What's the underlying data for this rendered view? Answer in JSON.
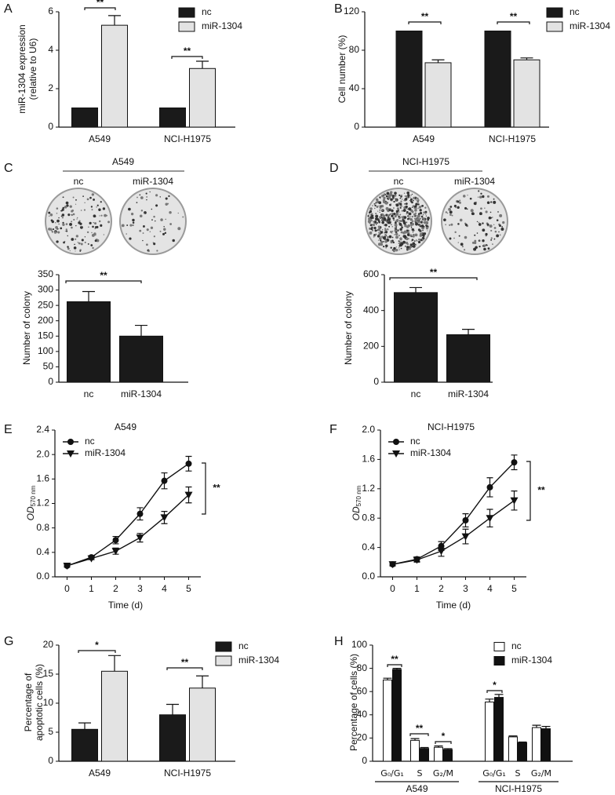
{
  "chart_data": [
    {
      "panel": "A",
      "type": "bar",
      "categories": [
        "A549",
        "NCI-H1975"
      ],
      "ylabel": [
        "miR-1304 expression",
        "(relative to U6)"
      ],
      "ylim": [
        0,
        6
      ],
      "yticks": [
        0,
        2,
        4,
        6
      ],
      "series": [
        {
          "name": "nc",
          "color": "#1a1a1a",
          "values": [
            1,
            1
          ]
        },
        {
          "name": "miR-1304",
          "color": "#e3e3e3",
          "values": [
            5.3,
            3.05
          ],
          "errors": [
            0.5,
            0.38
          ]
        }
      ],
      "annotations": [
        "**",
        "**"
      ]
    },
    {
      "panel": "B",
      "type": "bar",
      "categories": [
        "A549",
        "NCI-H1975"
      ],
      "ylabel": [
        "Cell number (%)"
      ],
      "ylim": [
        0,
        120
      ],
      "yticks": [
        0,
        40,
        80,
        120
      ],
      "series": [
        {
          "name": "nc",
          "color": "#1a1a1a",
          "values": [
            100,
            100
          ]
        },
        {
          "name": "miR-1304",
          "color": "#e3e3e3",
          "values": [
            67,
            70
          ],
          "errors": [
            3,
            2
          ]
        }
      ],
      "annotations": [
        "**",
        "**"
      ]
    },
    {
      "panel": "C",
      "type": "bar",
      "title": "A549",
      "dish_labels": [
        "nc",
        "miR-1304"
      ],
      "categories": [
        "nc",
        "miR-1304"
      ],
      "values": [
        262,
        150
      ],
      "errors": [
        33,
        35
      ],
      "color": "#1a1a1a",
      "ylabel": [
        "Number of colony"
      ],
      "ylim": [
        0,
        350
      ],
      "yticks": [
        0,
        50,
        100,
        150,
        200,
        250,
        300,
        350
      ],
      "annotations": [
        "**"
      ]
    },
    {
      "panel": "D",
      "type": "bar",
      "title": "NCI-H1975",
      "dish_labels": [
        "nc",
        "miR-1304"
      ],
      "categories": [
        "nc",
        "miR-1304"
      ],
      "values": [
        500,
        265
      ],
      "errors": [
        28,
        30
      ],
      "color": "#1a1a1a",
      "ylabel": [
        "Number of colony"
      ],
      "ylim": [
        0,
        600
      ],
      "yticks": [
        0,
        200,
        400,
        600
      ],
      "annotations": [
        "**"
      ]
    },
    {
      "panel": "E",
      "type": "line",
      "title": "A549",
      "xlabel": "Time (d)",
      "ylabel": "OD",
      "ylabel_sub": "570 nm",
      "x": [
        0,
        1,
        2,
        3,
        4,
        5
      ],
      "xlim": [
        -0.5,
        5.5
      ],
      "xticks": [
        0,
        1,
        2,
        3,
        4,
        5
      ],
      "ylim": [
        0,
        2.4
      ],
      "yticks": [
        {
          "value": 0,
          "label": "0.0"
        },
        {
          "value": 0.4,
          "label": "0.4"
        },
        {
          "value": 0.8,
          "label": "0.8"
        },
        {
          "value": 1.2,
          "label": "1.2"
        },
        {
          "value": 1.6,
          "label": "1.6"
        },
        {
          "value": 2.0,
          "label": "2.0"
        },
        {
          "value": 2.4,
          "label": "2.4"
        }
      ],
      "series": [
        {
          "name": "nc",
          "color": "#111111",
          "marker": "circle",
          "values": [
            0.18,
            0.32,
            0.6,
            1.03,
            1.57,
            1.85
          ],
          "errors": [
            0.02,
            0.02,
            0.06,
            0.1,
            0.13,
            0.12
          ]
        },
        {
          "name": "miR-1304",
          "color": "#111111",
          "marker": "triangle-down",
          "values": [
            0.18,
            0.3,
            0.42,
            0.64,
            0.97,
            1.34
          ],
          "errors": [
            0.02,
            0.02,
            0.05,
            0.07,
            0.1,
            0.13
          ]
        }
      ],
      "annotations": [
        "**"
      ]
    },
    {
      "panel": "F",
      "type": "line",
      "title": "NCI-H1975",
      "xlabel": "Time (d)",
      "ylabel": "OD",
      "ylabel_sub": "570 nm",
      "x": [
        0,
        1,
        2,
        3,
        4,
        5
      ],
      "xlim": [
        -0.5,
        5.5
      ],
      "xticks": [
        0,
        1,
        2,
        3,
        4,
        5
      ],
      "ylim": [
        0,
        2.0
      ],
      "yticks": [
        {
          "value": 0,
          "label": "0.0"
        },
        {
          "value": 0.4,
          "label": "0.4"
        },
        {
          "value": 0.8,
          "label": "0.8"
        },
        {
          "value": 1.2,
          "label": "1.2"
        },
        {
          "value": 1.6,
          "label": "1.6"
        },
        {
          "value": 2.0,
          "label": "2.0"
        }
      ],
      "series": [
        {
          "name": "nc",
          "color": "#111111",
          "marker": "circle",
          "values": [
            0.17,
            0.24,
            0.42,
            0.77,
            1.22,
            1.56
          ],
          "errors": [
            0.02,
            0.03,
            0.06,
            0.09,
            0.13,
            0.1
          ]
        },
        {
          "name": "miR-1304",
          "color": "#111111",
          "marker": "triangle-down",
          "values": [
            0.17,
            0.23,
            0.35,
            0.55,
            0.8,
            1.04
          ],
          "errors": [
            0.02,
            0.03,
            0.07,
            0.1,
            0.12,
            0.13
          ]
        }
      ],
      "annotations": [
        "**"
      ]
    },
    {
      "panel": "G",
      "type": "bar",
      "categories": [
        "A549",
        "NCI-H1975"
      ],
      "ylabel": [
        "Percentage of",
        "apoptotic cells (%)"
      ],
      "ylim": [
        0,
        20
      ],
      "yticks": [
        0,
        5,
        10,
        15,
        20
      ],
      "series": [
        {
          "name": "nc",
          "color": "#1a1a1a",
          "values": [
            5.5,
            8
          ],
          "errors": [
            1.1,
            1.8
          ]
        },
        {
          "name": "miR-1304",
          "color": "#e3e3e3",
          "values": [
            15.5,
            12.6
          ],
          "errors": [
            2.7,
            2.1
          ]
        }
      ],
      "annotations": [
        "*",
        "**"
      ]
    },
    {
      "panel": "H",
      "type": "bar",
      "categories": [
        "G₀/G₁",
        "S",
        "G₂/M",
        "G₀/G₁",
        "S",
        "G₂/M"
      ],
      "groups": [
        "A549",
        "NCI-H1975"
      ],
      "ylabel": [
        "Percentage of cells (%)"
      ],
      "ylim": [
        0,
        100
      ],
      "yticks": [
        0,
        20,
        40,
        60,
        80,
        100
      ],
      "series": [
        {
          "name": "nc",
          "color": "#ffffff",
          "values": [
            70,
            18,
            12,
            51,
            21,
            29
          ],
          "errors": [
            1.5,
            1.5,
            1.2,
            2.5,
            0.8,
            2
          ]
        },
        {
          "name": "miR-1304",
          "color": "#111111",
          "values": [
            79,
            11,
            10,
            55,
            16,
            28
          ],
          "errors": [
            1,
            0.8,
            0.8,
            2.5,
            0.6,
            2
          ]
        }
      ],
      "annotations": [
        "**",
        "**",
        "*",
        "*"
      ]
    }
  ]
}
